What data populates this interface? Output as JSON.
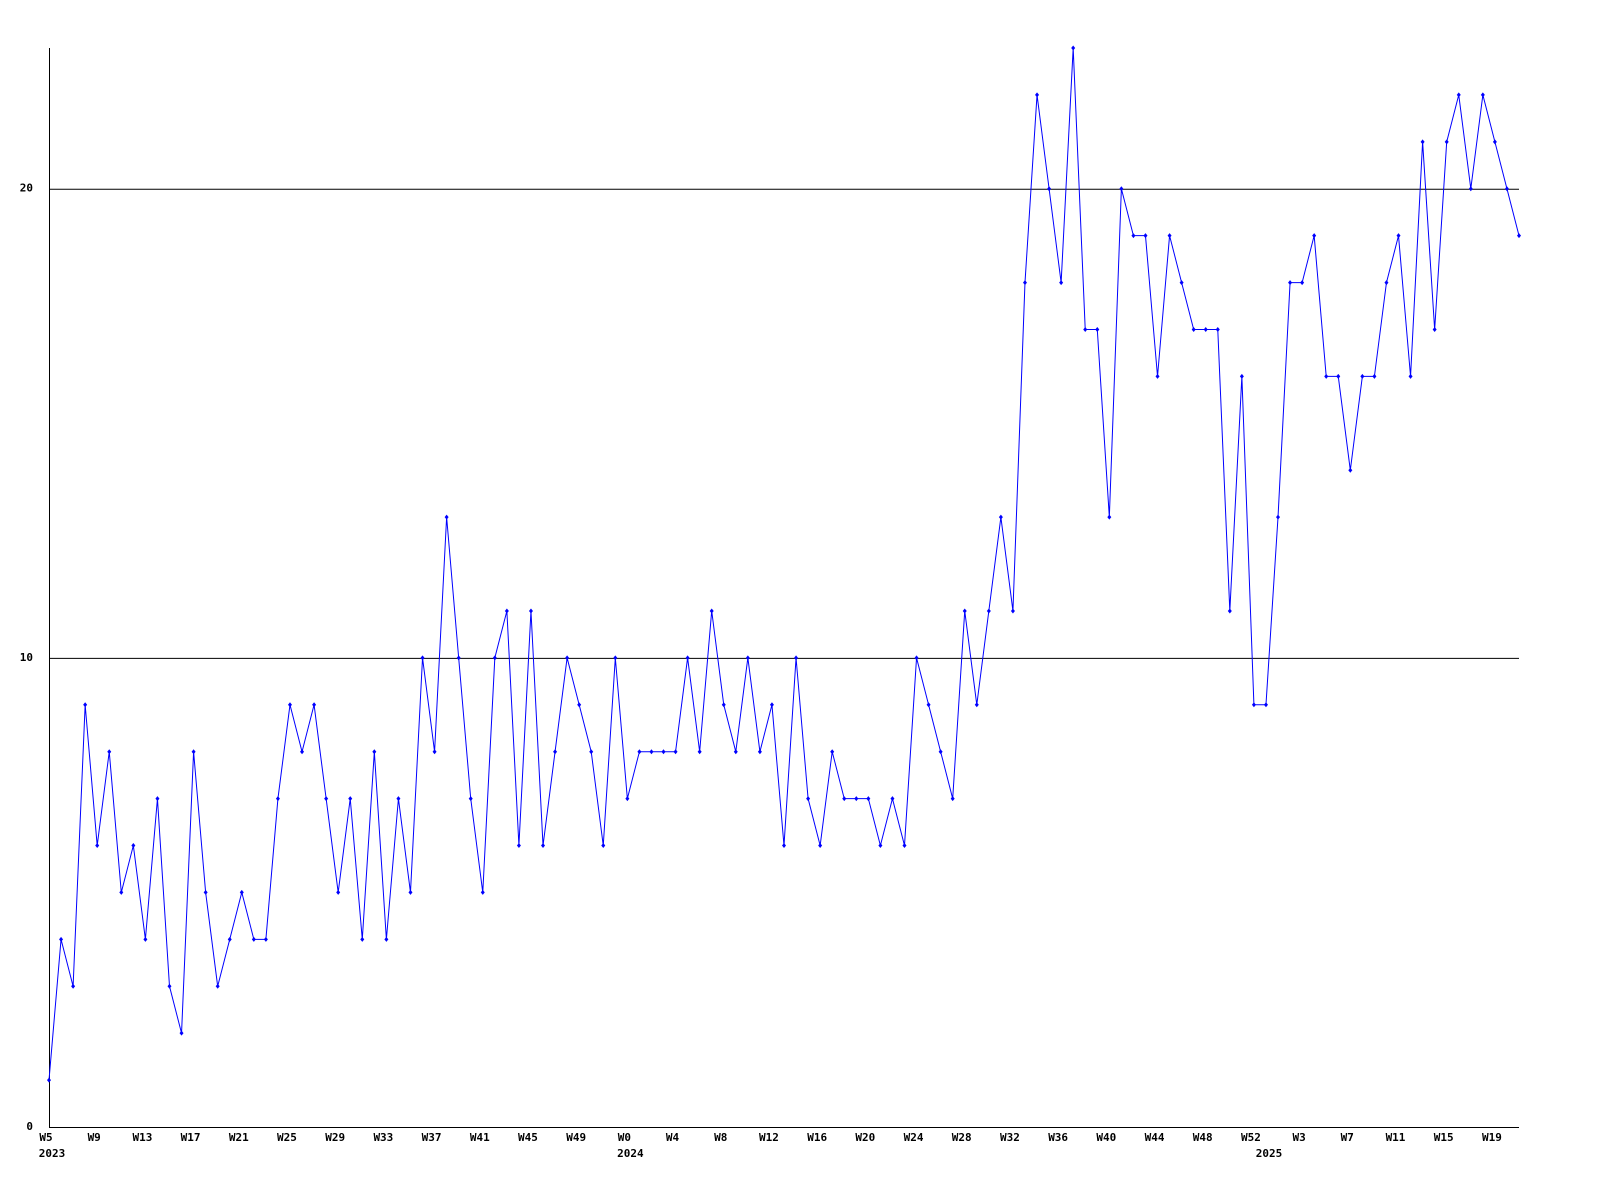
{
  "chart_data": {
    "type": "line",
    "categories": [
      "W5",
      null,
      null,
      null,
      "W9",
      null,
      null,
      null,
      "W13",
      null,
      null,
      null,
      "W17",
      null,
      null,
      null,
      "W21",
      null,
      null,
      null,
      "W25",
      null,
      null,
      null,
      "W29",
      null,
      null,
      null,
      "W33",
      null,
      null,
      null,
      "W37",
      null,
      null,
      null,
      "W41",
      null,
      null,
      null,
      "W45",
      null,
      null,
      null,
      "W49",
      null,
      null,
      null,
      "W0",
      null,
      null,
      null,
      "W4",
      null,
      null,
      null,
      "W8",
      null,
      null,
      null,
      "W12",
      null,
      null,
      null,
      "W16",
      null,
      null,
      null,
      "W20",
      null,
      null,
      null,
      "W24",
      null,
      null,
      null,
      "W28",
      null,
      null,
      null,
      "W32",
      null,
      null,
      null,
      "W36",
      null,
      null,
      null,
      "W40",
      null,
      null,
      null,
      "W44",
      null,
      null,
      null,
      "W48",
      null,
      null,
      null,
      "W52",
      null,
      null,
      null,
      "W3",
      null,
      null,
      null,
      "W7",
      null,
      null,
      null,
      "W11",
      null,
      null,
      null,
      "W15",
      null,
      null,
      null,
      "W19",
      null,
      null
    ],
    "year_labels": [
      "2023",
      null,
      null,
      null,
      null,
      null,
      null,
      null,
      null,
      null,
      null,
      null,
      null,
      null,
      null,
      null,
      null,
      null,
      null,
      null,
      null,
      null,
      null,
      null,
      null,
      null,
      null,
      null,
      null,
      null,
      null,
      null,
      null,
      null,
      null,
      null,
      null,
      null,
      null,
      null,
      null,
      null,
      null,
      null,
      null,
      null,
      null,
      null,
      "2024",
      null,
      null,
      null,
      null,
      null,
      null,
      null,
      null,
      null,
      null,
      null,
      null,
      null,
      null,
      null,
      null,
      null,
      null,
      null,
      null,
      null,
      null,
      null,
      null,
      null,
      null,
      null,
      null,
      null,
      null,
      null,
      null,
      null,
      null,
      null,
      null,
      null,
      null,
      null,
      null,
      null,
      null,
      null,
      null,
      null,
      null,
      null,
      null,
      null,
      null,
      null,
      null,
      "2025",
      null,
      null,
      null,
      null,
      null,
      null,
      null,
      null,
      null,
      null,
      null,
      null,
      null,
      null,
      null,
      null,
      null,
      null,
      null,
      null,
      null
    ],
    "values": [
      1,
      4,
      3,
      9,
      6,
      8,
      5,
      6,
      4,
      7,
      3,
      2,
      8,
      5,
      3,
      4,
      5,
      4,
      4,
      7,
      9,
      8,
      9,
      7,
      5,
      7,
      4,
      8,
      4,
      7,
      5,
      10,
      8,
      13,
      10,
      7,
      5,
      10,
      11,
      6,
      11,
      6,
      8,
      10,
      9,
      8,
      6,
      10,
      7,
      8,
      8,
      8,
      8,
      10,
      8,
      11,
      9,
      8,
      10,
      8,
      9,
      6,
      10,
      7,
      6,
      8,
      7,
      7,
      7,
      6,
      7,
      6,
      10,
      9,
      8,
      7,
      11,
      9,
      11,
      13,
      11,
      18,
      22,
      20,
      18,
      23,
      17,
      17,
      13,
      20,
      19,
      19,
      16,
      19,
      18,
      17,
      17,
      17,
      11,
      16,
      9,
      9,
      13,
      18,
      18,
      19,
      16,
      16,
      14,
      16,
      16,
      18,
      19,
      16,
      21,
      17,
      21,
      22,
      20,
      22,
      21,
      20,
      19
    ],
    "color": "#0000ff",
    "ylim": [
      0,
      23
    ],
    "yticks": [
      0,
      10,
      20
    ],
    "grid": true
  }
}
